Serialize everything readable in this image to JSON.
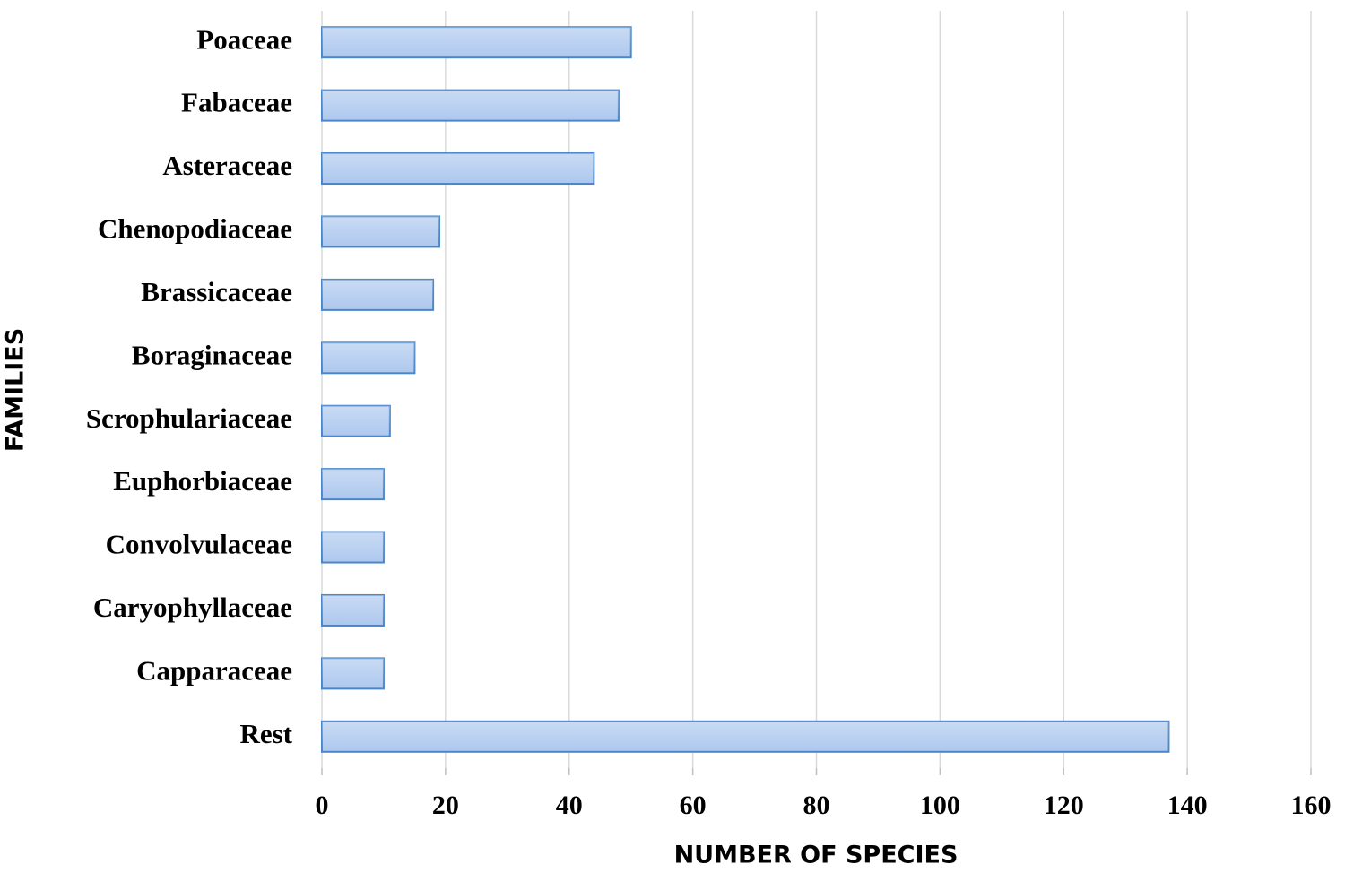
{
  "chart_data": {
    "type": "barh",
    "categories": [
      "Poaceae",
      "Fabaceae",
      "Asteraceae",
      "Chenopodiaceae",
      "Brassicaceae",
      "Boraginaceae",
      "Scrophulariaceae",
      "Euphorbiaceae",
      "Convolvulaceae",
      "Caryophyllaceae",
      "Capparaceae",
      "Rest"
    ],
    "values": [
      50,
      48,
      44,
      19,
      18,
      15,
      11,
      10,
      10,
      10,
      10,
      137
    ],
    "color": "#adc8ee",
    "edgecolor": "#4a86c8",
    "xlim": [
      0,
      160
    ],
    "xticks": [
      0,
      20,
      40,
      60,
      80,
      100,
      120,
      140,
      160
    ],
    "xlabel": "NUMBER OF SPECIES",
    "ylabel": "FAMILIES",
    "grid": true
  }
}
